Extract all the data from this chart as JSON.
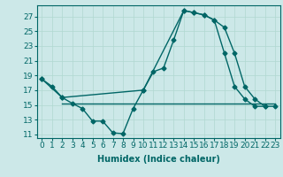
{
  "title": "",
  "xlabel": "Humidex (Indice chaleur)",
  "background_color": "#cce8e8",
  "line_color": "#006666",
  "ylim": [
    10.5,
    28.5
  ],
  "xlim": [
    -0.5,
    23.5
  ],
  "yticks": [
    11,
    13,
    15,
    17,
    19,
    21,
    23,
    25,
    27
  ],
  "xticks": [
    0,
    1,
    2,
    3,
    4,
    5,
    6,
    7,
    8,
    9,
    10,
    11,
    12,
    13,
    14,
    15,
    16,
    17,
    18,
    19,
    20,
    21,
    22,
    23
  ],
  "series1_x": [
    0,
    1,
    2,
    3,
    4,
    5,
    6,
    7,
    8,
    9,
    10,
    11,
    12,
    13,
    14,
    15,
    16,
    17,
    18,
    19,
    20,
    21,
    22
  ],
  "series1_y": [
    18.5,
    17.5,
    16.0,
    15.2,
    14.5,
    12.8,
    12.8,
    11.2,
    11.1,
    14.5,
    17.0,
    19.5,
    20.0,
    23.8,
    27.8,
    27.5,
    27.2,
    26.5,
    22.0,
    17.5,
    15.8,
    14.8,
    14.8
  ],
  "series2_x": [
    0,
    2,
    10,
    14,
    15,
    16,
    17,
    18,
    19,
    20,
    21,
    22,
    23
  ],
  "series2_y": [
    18.5,
    16.0,
    17.0,
    27.8,
    27.5,
    27.2,
    26.5,
    25.5,
    22.0,
    17.5,
    15.8,
    14.8,
    14.8
  ],
  "series3_x": [
    2,
    23
  ],
  "series3_y": [
    15.2,
    15.2
  ],
  "grid_color": "#b0d8d0",
  "marker": "D",
  "marker_size": 2.5,
  "line_width": 1.0,
  "xlabel_fontsize": 7,
  "tick_fontsize": 6.5
}
